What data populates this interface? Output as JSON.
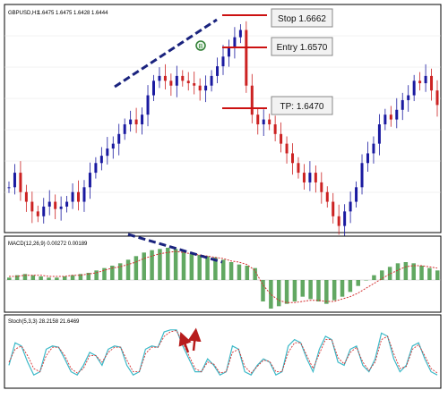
{
  "main_panel": {
    "symbol_label": "GBPUSD,H1",
    "ohlc": "1.6475 1.6475 1.6428 1.6444",
    "annotations": {
      "stop": "Stop 1.6662",
      "entry": "Entry 1.6570",
      "tp": "TP: 1.6470"
    },
    "marker_label": "B"
  },
  "macd_panel": {
    "label": "MACD(12,26,9) 0.00272 0.00189"
  },
  "stoch_panel": {
    "label": "Stoch(5,3,3) 28.2158 21.6469"
  },
  "colors": {
    "bull_candle": "#1a1aa0",
    "bear_candle": "#cc2222",
    "macd_histogram": "#2e8b2e",
    "macd_signal": "#d43030",
    "stoch_main": "#3cb9c8",
    "stoch_signal": "#d43030",
    "trendline": "#1a237e",
    "level_lines": "#cc1111",
    "arrows": "#b71c1c"
  },
  "chart_data": [
    {
      "type": "line",
      "title": "",
      "series": [
        {
          "values": [
            1.633,
            1.636,
            1.632,
            1.63,
            1.628,
            1.627,
            1.629,
            1.63,
            1.6285,
            1.629,
            1.63,
            1.632,
            1.63,
            1.633,
            1.636,
            1.638,
            1.6395,
            1.641,
            1.642,
            1.644,
            1.646,
            1.647,
            1.646,
            1.648,
            1.652,
            1.655,
            1.656,
            1.655,
            1.654,
            1.656,
            1.655,
            1.6545,
            1.654,
            1.653,
            1.654,
            1.656,
            1.658,
            1.66,
            1.662,
            1.664,
            1.6655,
            1.654,
            1.648,
            1.646,
            1.647,
            1.646,
            1.644,
            1.642,
            1.64,
            1.638,
            1.636,
            1.634,
            1.636,
            1.634,
            1.632,
            1.63,
            1.627,
            1.625,
            1.628,
            1.63,
            1.633,
            1.638,
            1.64,
            1.642,
            1.646,
            1.648,
            1.647,
            1.649,
            1.651,
            1.652,
            1.655,
            1.6545,
            1.656,
            1.653,
            1.65
          ]
        }
      ]
    },
    {
      "type": "bar",
      "title": "",
      "series": [
        {
          "values": [
            0.0002,
            0.0004,
            0.0005,
            0.0004,
            0.0003,
            0.0002,
            0.0002,
            0.0003,
            0.0004,
            0.0005,
            0.0006,
            0.0008,
            0.001,
            0.0012,
            0.0014,
            0.0017,
            0.002,
            0.0023,
            0.0025,
            0.0026,
            0.0027,
            0.0026,
            0.0024,
            0.0022,
            0.0021,
            0.002,
            0.0019,
            0.0017,
            0.0015,
            0.0013,
            0.0012,
            0.001,
            -0.0018,
            -0.0024,
            -0.0022,
            -0.002,
            -0.0018,
            -0.0014,
            -0.0016,
            -0.0018,
            -0.002,
            -0.0017,
            -0.0014,
            -0.001,
            -0.0005,
            0.0,
            0.0004,
            0.0008,
            0.0011,
            0.0014,
            0.0015,
            0.0014,
            0.0012,
            0.001,
            0.0008
          ]
        },
        {
          "values": [
            0.0003,
            0.0003,
            0.0004,
            0.0004,
            0.0004,
            0.0003,
            0.0003,
            0.0003,
            0.0004,
            0.0004,
            0.0005,
            0.0006,
            0.0008,
            0.001,
            0.0011,
            0.0013,
            0.0015,
            0.0018,
            0.002,
            0.0022,
            0.0023,
            0.0024,
            0.0023,
            0.0022,
            0.0021,
            0.002,
            0.0019,
            0.0018,
            0.0016,
            0.0015,
            0.0013,
            0.0008,
            -0.0004,
            -0.0012,
            -0.0017,
            -0.0019,
            -0.0019,
            -0.0018,
            -0.0017,
            -0.0017,
            -0.0018,
            -0.0018,
            -0.0016,
            -0.0014,
            -0.0011,
            -0.0007,
            -0.0003,
            0.0001,
            0.0005,
            0.0008,
            0.0011,
            0.0012,
            0.0012,
            0.0011,
            0.001
          ]
        }
      ]
    },
    {
      "type": "line",
      "title": "",
      "series": [
        {
          "values": [
            30,
            65,
            60,
            35,
            15,
            20,
            55,
            60,
            58,
            40,
            20,
            15,
            30,
            50,
            45,
            30,
            55,
            60,
            58,
            30,
            15,
            20,
            55,
            60,
            58,
            82,
            85,
            85,
            60,
            40,
            20,
            20,
            40,
            30,
            15,
            20,
            60,
            55,
            20,
            15,
            30,
            40,
            35,
            15,
            20,
            60,
            70,
            65,
            40,
            20,
            55,
            75,
            70,
            35,
            30,
            55,
            60,
            30,
            20,
            40,
            80,
            75,
            40,
            20,
            30,
            60,
            65,
            40,
            20,
            15
          ]
        },
        {
          "values": [
            35,
            55,
            60,
            45,
            25,
            20,
            45,
            58,
            58,
            45,
            25,
            18,
            25,
            45,
            45,
            35,
            50,
            58,
            58,
            38,
            20,
            20,
            48,
            58,
            58,
            75,
            82,
            84,
            65,
            45,
            25,
            20,
            35,
            32,
            18,
            20,
            50,
            55,
            28,
            18,
            28,
            38,
            36,
            20,
            20,
            50,
            65,
            65,
            45,
            25,
            48,
            70,
            70,
            42,
            32,
            50,
            58,
            35,
            22,
            35,
            70,
            75,
            48,
            25,
            28,
            55,
            62,
            45,
            25,
            18
          ]
        }
      ]
    }
  ]
}
